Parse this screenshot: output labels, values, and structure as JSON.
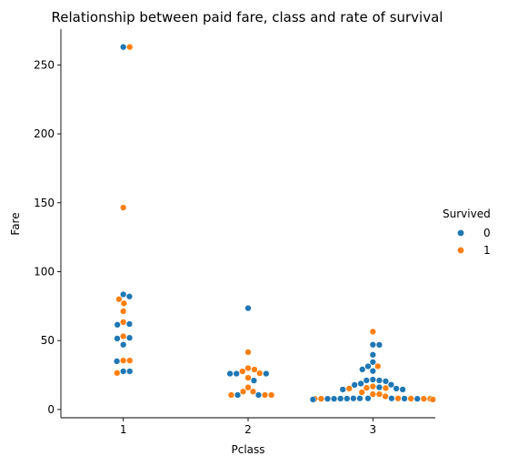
{
  "chart_data": {
    "type": "scatter",
    "title": "Relationship between paid fare, class and rate of survival",
    "xlabel": "Pclass",
    "ylabel": "Fare",
    "categories": [
      "1",
      "2",
      "3"
    ],
    "yticks": [
      0,
      50,
      100,
      150,
      200,
      250
    ],
    "ylim": [
      -6,
      276
    ],
    "grid": false,
    "legend": {
      "title": "Survived",
      "placement": "right",
      "entries": [
        {
          "label": "0",
          "color": "#1f77b4"
        },
        {
          "label": "1",
          "color": "#ff7f0e"
        }
      ]
    },
    "series": [
      {
        "survived": "0",
        "color": "#1f77b4",
        "points": [
          {
            "pclass": "1",
            "fare": 263
          },
          {
            "pclass": "1",
            "fare": 83.5
          },
          {
            "pclass": "1",
            "fare": 82
          },
          {
            "pclass": "1",
            "fare": 62
          },
          {
            "pclass": "1",
            "fare": 61.5
          },
          {
            "pclass": "1",
            "fare": 52
          },
          {
            "pclass": "1",
            "fare": 51.5
          },
          {
            "pclass": "1",
            "fare": 47
          },
          {
            "pclass": "1",
            "fare": 35
          },
          {
            "pclass": "1",
            "fare": 27.7
          },
          {
            "pclass": "1",
            "fare": 27.7
          },
          {
            "pclass": "2",
            "fare": 73.5
          },
          {
            "pclass": "2",
            "fare": 26
          },
          {
            "pclass": "2",
            "fare": 26
          },
          {
            "pclass": "2",
            "fare": 26
          },
          {
            "pclass": "2",
            "fare": 21
          },
          {
            "pclass": "2",
            "fare": 10.5
          },
          {
            "pclass": "2",
            "fare": 10.5
          },
          {
            "pclass": "3",
            "fare": 47
          },
          {
            "pclass": "3",
            "fare": 46.9
          },
          {
            "pclass": "3",
            "fare": 39.7
          },
          {
            "pclass": "3",
            "fare": 34.4
          },
          {
            "pclass": "3",
            "fare": 31.3
          },
          {
            "pclass": "3",
            "fare": 29.1
          },
          {
            "pclass": "3",
            "fare": 27.9
          },
          {
            "pclass": "3",
            "fare": 21.7
          },
          {
            "pclass": "3",
            "fare": 21.1
          },
          {
            "pclass": "3",
            "fare": 21.1
          },
          {
            "pclass": "3",
            "fare": 20.5
          },
          {
            "pclass": "3",
            "fare": 18.8
          },
          {
            "pclass": "3",
            "fare": 18
          },
          {
            "pclass": "3",
            "fare": 17.8
          },
          {
            "pclass": "3",
            "fare": 16.1
          },
          {
            "pclass": "3",
            "fare": 15.2
          },
          {
            "pclass": "3",
            "fare": 14.5
          },
          {
            "pclass": "3",
            "fare": 14.5
          },
          {
            "pclass": "3",
            "fare": 8.05
          },
          {
            "pclass": "3",
            "fare": 8.05
          },
          {
            "pclass": "3",
            "fare": 7.9
          },
          {
            "pclass": "3",
            "fare": 7.9
          },
          {
            "pclass": "3",
            "fare": 7.75
          },
          {
            "pclass": "3",
            "fare": 7.75
          },
          {
            "pclass": "3",
            "fare": 7.75
          },
          {
            "pclass": "3",
            "fare": 7.25
          },
          {
            "pclass": "3",
            "fare": 7.25
          },
          {
            "pclass": "3",
            "fare": 7.25
          },
          {
            "pclass": "3",
            "fare": 7.25
          },
          {
            "pclass": "3",
            "fare": 7.9
          },
          {
            "pclass": "3",
            "fare": 8.05
          },
          {
            "pclass": "3",
            "fare": 8.05
          }
        ]
      },
      {
        "survived": "1",
        "color": "#ff7f0e",
        "points": [
          {
            "pclass": "1",
            "fare": 263
          },
          {
            "pclass": "1",
            "fare": 146.5
          },
          {
            "pclass": "1",
            "fare": 80
          },
          {
            "pclass": "1",
            "fare": 77
          },
          {
            "pclass": "1",
            "fare": 71.3
          },
          {
            "pclass": "1",
            "fare": 63.4
          },
          {
            "pclass": "1",
            "fare": 53.1
          },
          {
            "pclass": "1",
            "fare": 35.5
          },
          {
            "pclass": "1",
            "fare": 35.5
          },
          {
            "pclass": "1",
            "fare": 26.5
          },
          {
            "pclass": "2",
            "fare": 41.6
          },
          {
            "pclass": "2",
            "fare": 30
          },
          {
            "pclass": "2",
            "fare": 29
          },
          {
            "pclass": "2",
            "fare": 27.7
          },
          {
            "pclass": "2",
            "fare": 26.3
          },
          {
            "pclass": "2",
            "fare": 23
          },
          {
            "pclass": "2",
            "fare": 16
          },
          {
            "pclass": "2",
            "fare": 13
          },
          {
            "pclass": "2",
            "fare": 13
          },
          {
            "pclass": "2",
            "fare": 10.5
          },
          {
            "pclass": "2",
            "fare": 10.5
          },
          {
            "pclass": "2",
            "fare": 10.5
          },
          {
            "pclass": "3",
            "fare": 56.5
          },
          {
            "pclass": "3",
            "fare": 31.4
          },
          {
            "pclass": "3",
            "fare": 16.7
          },
          {
            "pclass": "3",
            "fare": 15.7
          },
          {
            "pclass": "3",
            "fare": 15.5
          },
          {
            "pclass": "3",
            "fare": 15.2
          },
          {
            "pclass": "3",
            "fare": 12.5
          },
          {
            "pclass": "3",
            "fare": 11.1
          },
          {
            "pclass": "3",
            "fare": 11.1
          },
          {
            "pclass": "3",
            "fare": 9.5
          },
          {
            "pclass": "3",
            "fare": 8.05
          },
          {
            "pclass": "3",
            "fare": 7.9
          },
          {
            "pclass": "3",
            "fare": 7.75
          },
          {
            "pclass": "3",
            "fare": 7.75
          },
          {
            "pclass": "3",
            "fare": 7.75
          },
          {
            "pclass": "3",
            "fare": 7.75
          },
          {
            "pclass": "3",
            "fare": 7.25
          },
          {
            "pclass": "3",
            "fare": 7.25
          },
          {
            "pclass": "3",
            "fare": 7.25
          },
          {
            "pclass": "3",
            "fare": 7.25
          }
        ]
      }
    ]
  }
}
